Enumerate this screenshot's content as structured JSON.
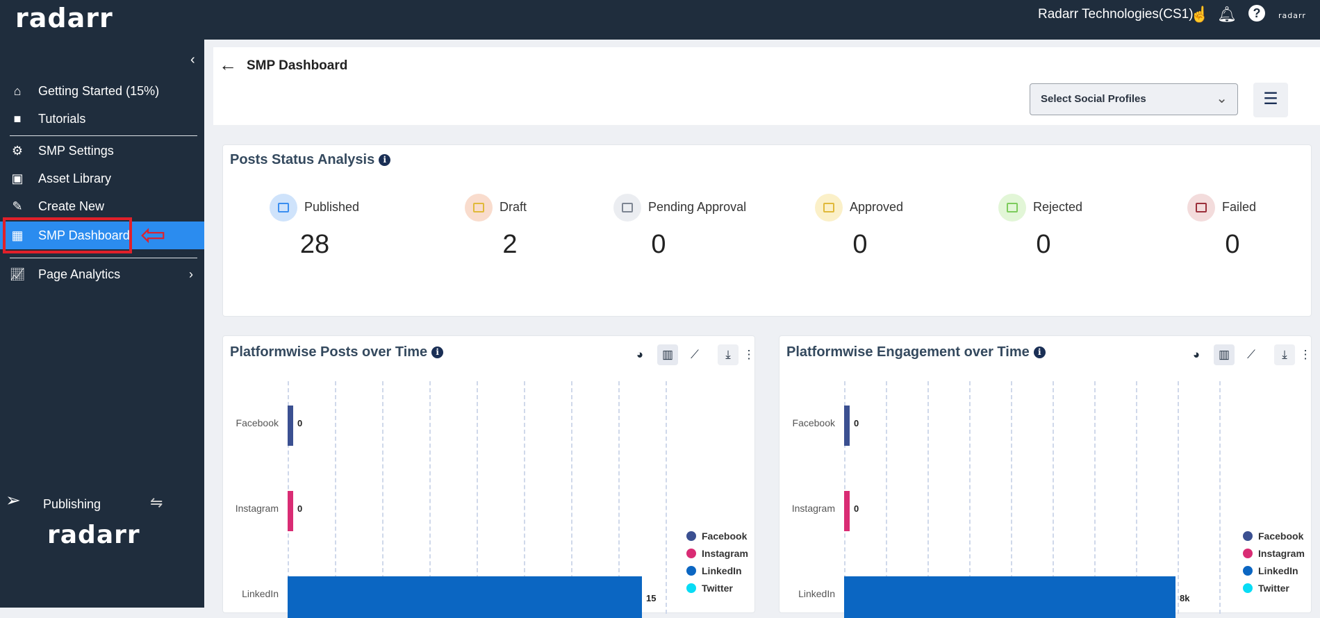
{
  "header": {
    "logo": "radarr",
    "org": "Radarr Technologies(CS1)",
    "small_logo": "radarr"
  },
  "sidebar": {
    "items": [
      {
        "label": "Getting Started (15%)",
        "icon": "home-icon"
      },
      {
        "label": "Tutorials",
        "icon": "video-icon"
      },
      {
        "label": "SMP Settings",
        "icon": "gear-icon"
      },
      {
        "label": "Asset Library",
        "icon": "media-library-icon"
      },
      {
        "label": "Create New",
        "icon": "edit-icon"
      },
      {
        "label": "SMP Dashboard",
        "icon": "dashboard-icon",
        "active": true
      },
      {
        "label": "Page Analytics",
        "icon": "analytics-icon"
      }
    ],
    "publishing": "Publishing",
    "bottom_logo": "radarr"
  },
  "page": {
    "title": "SMP Dashboard",
    "select_placeholder": "Select Social Profiles"
  },
  "status": {
    "title": "Posts Status Analysis",
    "items": [
      {
        "label": "Published",
        "value": "28",
        "bg": "#cfe3fb",
        "color": "#3a8ef0"
      },
      {
        "label": "Draft",
        "value": "2",
        "bg": "#f9dccd",
        "color": "#e0b93a"
      },
      {
        "label": "Pending Approval",
        "value": "0",
        "bg": "#ebedf1",
        "color": "#7d8592"
      },
      {
        "label": "Approved",
        "value": "0",
        "bg": "#fbf0c8",
        "color": "#e0b93a"
      },
      {
        "label": "Rejected",
        "value": "0",
        "bg": "#e2f6d7",
        "color": "#7ccc5c"
      },
      {
        "label": "Failed",
        "value": "0",
        "bg": "#f3dcdc",
        "color": "#9b2f3a"
      }
    ]
  },
  "chart_data": [
    {
      "type": "bar",
      "orientation": "horizontal",
      "title": "Platformwise Posts over Time",
      "categories": [
        "Facebook",
        "Instagram",
        "LinkedIn"
      ],
      "values": [
        0,
        0,
        15
      ],
      "value_labels": [
        "0",
        "0",
        "15"
      ],
      "xlim": [
        0,
        16
      ],
      "grid": true,
      "legend": [
        "Facebook",
        "Instagram",
        "LinkedIn",
        "Twitter"
      ],
      "legend_position": "bottom-right"
    },
    {
      "type": "bar",
      "orientation": "horizontal",
      "title": "Platformwise Engagement over Time",
      "categories": [
        "Facebook",
        "Instagram",
        "LinkedIn"
      ],
      "values": [
        0,
        0,
        7950
      ],
      "value_labels": [
        "0",
        "0",
        "8k"
      ],
      "xlim": [
        0,
        9000
      ],
      "grid": true,
      "legend": [
        "Facebook",
        "Instagram",
        "LinkedIn",
        "Twitter"
      ],
      "legend_position": "bottom-right"
    }
  ],
  "colors": {
    "Facebook": "#3b5091",
    "Instagram": "#d92c74",
    "LinkedIn": "#0b66c2",
    "Twitter": "#08dcf5",
    "accent": "#2b8cef",
    "sidebar": "#1f2d3d"
  }
}
